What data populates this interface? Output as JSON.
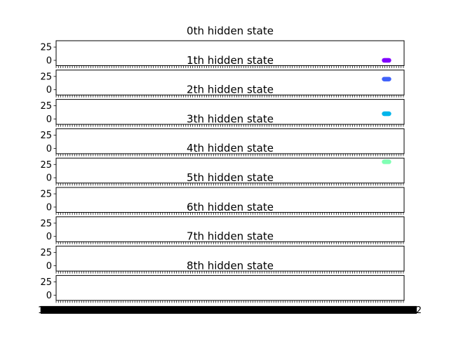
{
  "chart_data": {
    "type": "scatter",
    "layout": "9 stacked subplots sharing the x axis",
    "grid": false,
    "legend": "none",
    "yticks": [
      "25",
      "0"
    ],
    "ylim": [
      -10,
      37
    ],
    "x_tick_labels_note": "x tick labels are dense and overlapping (illegible)",
    "x_tick_label_start": "1",
    "x_tick_label_end": "2",
    "colors": [
      "#8000ff",
      "#4062fa",
      "#00b5eb",
      "#40ecd4",
      "#80ffb4",
      "#c0eb8d",
      "#ffb360",
      "#ff6232",
      "#ff0000"
    ],
    "subplots": [
      {
        "title": "0th hidden state",
        "y_value": 0
      },
      {
        "title": "1th hidden state",
        "y_value": 20
      },
      {
        "title": "2th hidden state",
        "y_value": 10
      },
      {
        "title": "3th hidden state",
        "y_value": null
      },
      {
        "title": "4th hidden state",
        "y_value": 30
      },
      {
        "title": "5th hidden state",
        "y_value": null
      },
      {
        "title": "6th hidden state",
        "y_value": null
      },
      {
        "title": "7th hidden state",
        "y_value": null
      },
      {
        "title": "8th hidden state",
        "y_value": null
      }
    ]
  }
}
